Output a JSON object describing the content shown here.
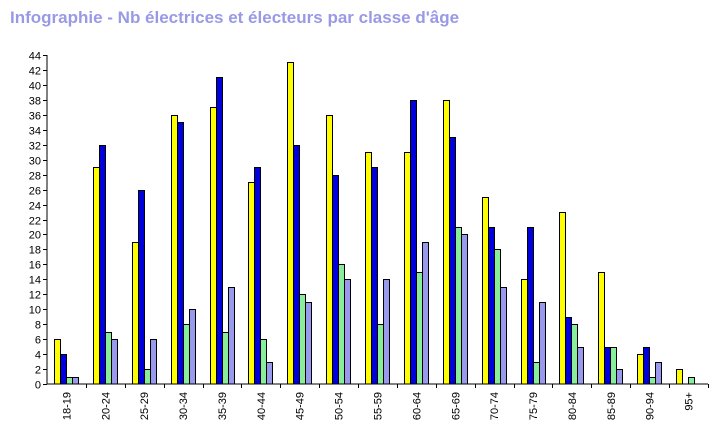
{
  "chart_data": {
    "type": "bar",
    "title": "Infographie - Nb électrices et électeurs par classe d'âge",
    "xlabel": "",
    "ylabel": "",
    "ylim": [
      0,
      44
    ],
    "ytick_step": 2,
    "grid": false,
    "legend": "none",
    "categories": [
      "18-19",
      "20-24",
      "25-29",
      "30-34",
      "35-39",
      "40-44",
      "45-49",
      "50-54",
      "55-59",
      "60-64",
      "65-69",
      "70-74",
      "75-79",
      "80-84",
      "85-89",
      "90-94",
      "95+"
    ],
    "series": [
      {
        "color": "#ffff00",
        "values": [
          6,
          29,
          19,
          36,
          37,
          27,
          43,
          36,
          31,
          31,
          38,
          25,
          14,
          23,
          15,
          4,
          2
        ]
      },
      {
        "color": "#0000dd",
        "values": [
          4,
          32,
          26,
          35,
          41,
          29,
          32,
          28,
          29,
          38,
          33,
          21,
          21,
          9,
          5,
          5,
          0
        ]
      },
      {
        "color": "#88ee99",
        "values": [
          1,
          7,
          2,
          8,
          7,
          6,
          12,
          16,
          8,
          15,
          21,
          18,
          3,
          8,
          5,
          1,
          1
        ]
      },
      {
        "color": "#9999ee",
        "values": [
          1,
          6,
          6,
          10,
          13,
          3,
          11,
          14,
          14,
          19,
          20,
          13,
          11,
          5,
          2,
          3,
          0
        ]
      }
    ]
  }
}
